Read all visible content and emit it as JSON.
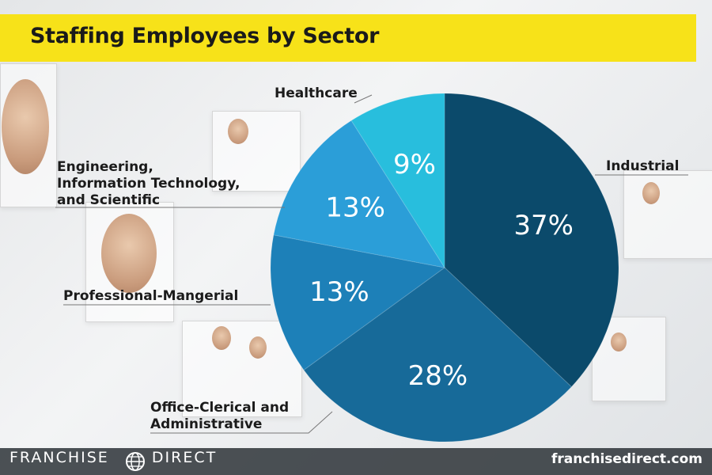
{
  "title": "Staffing Employees by Sector",
  "footer": {
    "brand_left": "FRANCHISE",
    "brand_right": "DIRECT",
    "site": "franchisedirect.com"
  },
  "chart_data": {
    "type": "pie",
    "title": "Staffing Employees by Sector",
    "slices": [
      {
        "label": "Industrial",
        "value": 37,
        "display": "37%",
        "color": "#0b4a6b"
      },
      {
        "label": "Office-Clerical and Administrative",
        "value": 28,
        "display": "28%",
        "color": "#176a99"
      },
      {
        "label": "Professional-Mangerial",
        "value": 13,
        "display": "13%",
        "color": "#1d80b8"
      },
      {
        "label": "Engineering, Information Technology, and Scientific",
        "value": 13,
        "display": "13%",
        "color": "#2b9ed8"
      },
      {
        "label": "Healthcare",
        "value": 9,
        "display": "9%",
        "color": "#28bedd"
      }
    ],
    "label_lines": {
      "industrial": [
        "Industrial"
      ],
      "office": [
        "Office-Clerical and",
        "Administrative"
      ],
      "professional": [
        "Professional-Mangerial"
      ],
      "engineering": [
        "Engineering,",
        "Information Technology,",
        "and Scientific"
      ],
      "healthcare": [
        "Healthcare"
      ]
    }
  }
}
